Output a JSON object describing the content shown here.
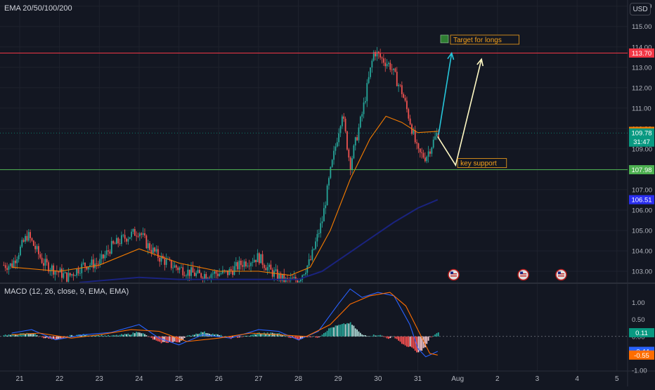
{
  "indicators": {
    "main_label": "EMA 20/50/100/200",
    "macd_label": "MACD (12, 26, close, 9, EMA, EMA)"
  },
  "currency": "USD",
  "colors": {
    "background": "#131722",
    "grid": "#1e222d",
    "axis_text": "#b2b5be",
    "candle_up": "#26a69a",
    "candle_down": "#ef5350",
    "ema20": "#f7a21b",
    "ema50": "#f57c00",
    "ema100": "#1a237e",
    "resistance_line": "#f23645",
    "support_line": "#4caf50",
    "arrow_blue": "#26c6da",
    "arrow_white": "#fff9c4",
    "macd_line": "#2962ff",
    "signal_line": "#ff6d00"
  },
  "chart_data": {
    "type": "candlestick",
    "title": "",
    "xlabel": "",
    "ylabel": "",
    "ylim": [
      102.45,
      116.3
    ],
    "x_ticks": [
      "21",
      "22",
      "23",
      "24",
      "25",
      "26",
      "27",
      "28",
      "29",
      "30",
      "31",
      "Aug",
      "2",
      "3",
      "4",
      "5"
    ],
    "y_ticks": [
      "116.00",
      "115.00",
      "114.00",
      "113.00",
      "112.00",
      "111.00",
      "110.00",
      "109.00",
      "108.00",
      "107.00",
      "106.00",
      "105.00",
      "104.00",
      "103.00"
    ],
    "price_labels": [
      {
        "value": 113.7,
        "text": "113.70",
        "color": "#f23645"
      },
      {
        "value": 109.86,
        "text": "109.86",
        "color": "#f57c00"
      },
      {
        "value": 109.78,
        "text": "109.78",
        "sub": "31:47",
        "color": "#089981"
      },
      {
        "value": 107.98,
        "text": "107.98",
        "color": "#4caf50"
      },
      {
        "value": 106.51,
        "text": "106.51",
        "color": "#2a2ef0"
      }
    ],
    "horizontal_lines": [
      {
        "value": 113.7,
        "name": "resistance"
      },
      {
        "value": 107.98,
        "name": "key support"
      }
    ],
    "annotations": [
      {
        "text": "Target for longs",
        "day": 31.82,
        "price": 114.2
      },
      {
        "text": "key support",
        "day": 32.0,
        "price": 108.15
      }
    ],
    "projection_arrows": [
      {
        "name": "blue-arrow",
        "points": [
          [
            31.52,
            109.7
          ],
          [
            31.85,
            113.7
          ]
        ]
      },
      {
        "name": "white-arrow",
        "points": [
          [
            31.5,
            109.6
          ],
          [
            31.95,
            108.2
          ],
          [
            32.6,
            113.4
          ]
        ]
      }
    ],
    "key_points": {
      "days": [
        20.8,
        21.2,
        21.6,
        22.2,
        22.6,
        23.0,
        23.3,
        23.6,
        24.0,
        24.2,
        24.5,
        24.8,
        25.2,
        25.5,
        25.8,
        26.2,
        26.6,
        27.0,
        27.3,
        27.7,
        28.0,
        28.3,
        28.6,
        28.8,
        29.1,
        29.3,
        29.6,
        29.9,
        30.1,
        30.3,
        30.6,
        30.8,
        31.0,
        31.2,
        31.35,
        31.5
      ],
      "prices": [
        103.3,
        104.8,
        103.4,
        102.7,
        103.3,
        103.4,
        104.2,
        104.6,
        105.0,
        104.3,
        103.7,
        103.3,
        103.0,
        102.8,
        102.9,
        102.9,
        103.4,
        103.7,
        103.0,
        102.5,
        102.6,
        103.5,
        105.5,
        107.8,
        110.8,
        108.2,
        110.7,
        113.8,
        113.4,
        113.1,
        111.8,
        110.4,
        108.8,
        108.6,
        109.2,
        109.8
      ]
    },
    "series": [
      {
        "name": "EMA 20",
        "color": "#f57c00",
        "x": [
          20.8,
          22.0,
          23.0,
          24.0,
          25.0,
          26.0,
          27.0,
          27.8,
          28.3,
          28.8,
          29.3,
          29.8,
          30.2,
          30.6,
          31.0,
          31.5
        ],
        "y": [
          103.2,
          103.0,
          103.3,
          104.1,
          103.4,
          103.0,
          103.0,
          102.8,
          103.2,
          105.0,
          107.5,
          109.5,
          110.6,
          110.3,
          109.8,
          109.86
        ]
      },
      {
        "name": "EMA 100",
        "color": "#1a237e",
        "x": [
          22.5,
          24.0,
          25.0,
          26.0,
          27.0,
          28.0,
          28.6,
          29.2,
          29.8,
          30.4,
          31.0,
          31.5
        ],
        "y": [
          102.45,
          102.7,
          102.6,
          102.6,
          102.6,
          102.6,
          103.0,
          103.8,
          104.6,
          105.4,
          106.1,
          106.51
        ]
      }
    ],
    "event_markers": [
      {
        "day": 31.9,
        "flag": "us"
      },
      {
        "day": 33.65,
        "flag": "us"
      },
      {
        "day": 34.6,
        "flag": "us"
      }
    ],
    "macd": {
      "ylim": [
        -1.02,
        1.55
      ],
      "y_ticks": [
        "1.00",
        "0.50",
        "0.00",
        "-0.50",
        "-1.00"
      ],
      "values": {
        "histogram": 0.11,
        "macd": -0.44,
        "signal": -0.55
      },
      "value_labels": [
        {
          "text": "0.11",
          "value": 0.11,
          "color": "#089981"
        },
        {
          "text": "-0.44",
          "value": -0.44,
          "color": "#2962ff"
        },
        {
          "text": "-0.55",
          "value": -0.55,
          "color": "#ff6d00"
        }
      ],
      "macd_line": {
        "x": [
          20.8,
          21.3,
          21.9,
          22.6,
          23.3,
          24.0,
          24.5,
          25.0,
          25.6,
          26.3,
          27.0,
          27.5,
          28.0,
          28.5,
          29.0,
          29.3,
          29.6,
          30.0,
          30.4,
          30.8,
          31.0,
          31.2,
          31.5
        ],
        "y": [
          0.1,
          0.2,
          -0.1,
          0.05,
          0.12,
          0.35,
          -0.05,
          -0.25,
          0.05,
          -0.05,
          0.2,
          0.15,
          -0.1,
          0.15,
          0.95,
          1.4,
          1.15,
          1.3,
          1.2,
          0.35,
          -0.35,
          -0.6,
          -0.44
        ]
      },
      "signal_line": {
        "x": [
          20.8,
          21.5,
          22.3,
          23.0,
          23.8,
          24.5,
          25.2,
          26.0,
          26.8,
          27.5,
          28.2,
          28.8,
          29.3,
          29.8,
          30.3,
          30.7,
          31.0,
          31.3,
          31.5
        ],
        "y": [
          0.05,
          0.1,
          -0.05,
          0.05,
          0.2,
          0.15,
          -0.15,
          -0.05,
          0.1,
          0.05,
          0.0,
          0.35,
          0.95,
          1.2,
          1.3,
          0.9,
          0.2,
          -0.5,
          -0.55
        ]
      }
    }
  }
}
